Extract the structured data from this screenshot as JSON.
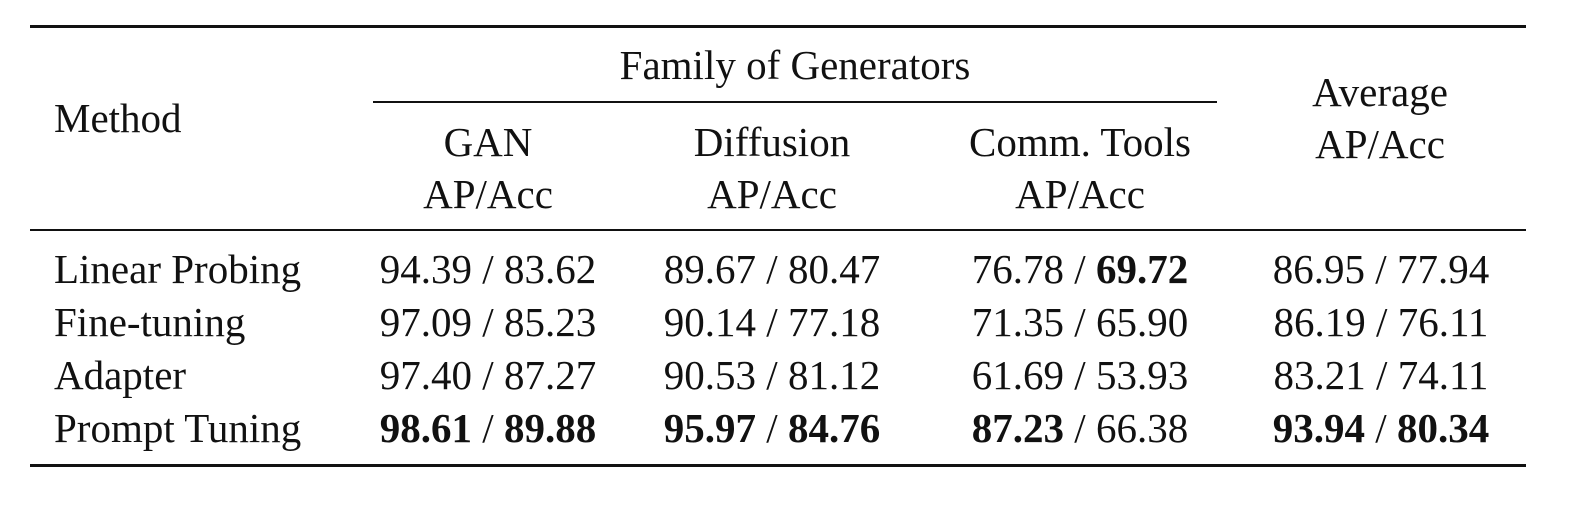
{
  "table": {
    "headers": {
      "method": "Method",
      "family": "Family of Generators",
      "average": [
        "Average",
        "AP/Acc"
      ],
      "generators": [
        {
          "name": "GAN",
          "metric": "AP/Acc"
        },
        {
          "name": "Diffusion",
          "metric": "AP/Acc"
        },
        {
          "name": "Comm. Tools",
          "metric": "AP/Acc"
        }
      ]
    },
    "separator": " / ",
    "rows": [
      {
        "method": "Linear Probing",
        "cells": [
          {
            "ap": "94.39",
            "acc": "83.62",
            "ap_bold": false,
            "acc_bold": false
          },
          {
            "ap": "89.67",
            "acc": "80.47",
            "ap_bold": false,
            "acc_bold": false
          },
          {
            "ap": "76.78",
            "acc": "69.72",
            "ap_bold": false,
            "acc_bold": true
          },
          {
            "ap": "86.95",
            "acc": "77.94",
            "ap_bold": false,
            "acc_bold": false
          }
        ]
      },
      {
        "method": "Fine-tuning",
        "cells": [
          {
            "ap": "97.09",
            "acc": "85.23",
            "ap_bold": false,
            "acc_bold": false
          },
          {
            "ap": "90.14",
            "acc": "77.18",
            "ap_bold": false,
            "acc_bold": false
          },
          {
            "ap": "71.35",
            "acc": "65.90",
            "ap_bold": false,
            "acc_bold": false
          },
          {
            "ap": "86.19",
            "acc": "76.11",
            "ap_bold": false,
            "acc_bold": false
          }
        ]
      },
      {
        "method": "Adapter",
        "cells": [
          {
            "ap": "97.40",
            "acc": "87.27",
            "ap_bold": false,
            "acc_bold": false
          },
          {
            "ap": "90.53",
            "acc": "81.12",
            "ap_bold": false,
            "acc_bold": false
          },
          {
            "ap": "61.69",
            "acc": "53.93",
            "ap_bold": false,
            "acc_bold": false
          },
          {
            "ap": "83.21",
            "acc": "74.11",
            "ap_bold": false,
            "acc_bold": false
          }
        ]
      },
      {
        "method": "Prompt Tuning",
        "cells": [
          {
            "ap": "98.61",
            "acc": "89.88",
            "ap_bold": true,
            "acc_bold": true
          },
          {
            "ap": "95.97",
            "acc": "84.76",
            "ap_bold": true,
            "acc_bold": true
          },
          {
            "ap": "87.23",
            "acc": "66.38",
            "ap_bold": true,
            "acc_bold": false
          },
          {
            "ap": "93.94",
            "acc": "80.34",
            "ap_bold": true,
            "acc_bold": true
          }
        ]
      }
    ]
  }
}
